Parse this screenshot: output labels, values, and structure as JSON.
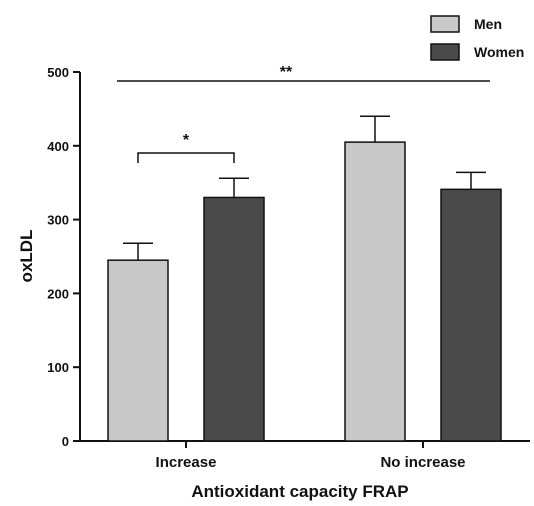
{
  "chart_data": {
    "type": "bar",
    "title": "",
    "xlabel": "Antioxidant capacity FRAP",
    "ylabel": "oxLDL",
    "ylim": [
      0,
      500
    ],
    "yticks": [
      "0",
      "100",
      "200",
      "300",
      "400",
      "500"
    ],
    "categories": [
      "Increase",
      "No increase"
    ],
    "series": [
      {
        "name": "Men",
        "values": [
          245,
          405
        ],
        "errors": [
          23,
          35
        ],
        "color": "#c8c8c8"
      },
      {
        "name": "Women",
        "values": [
          330,
          341
        ],
        "errors": [
          26,
          23
        ],
        "color": "#4a4a4a"
      }
    ],
    "annotations": [
      {
        "label": "*",
        "scope": "Increase: Men vs Women"
      },
      {
        "label": "**",
        "scope": "Increase vs No increase"
      }
    ],
    "legend": {
      "position": "top-right",
      "labels": [
        "Men",
        "Women"
      ]
    },
    "grid": false
  }
}
